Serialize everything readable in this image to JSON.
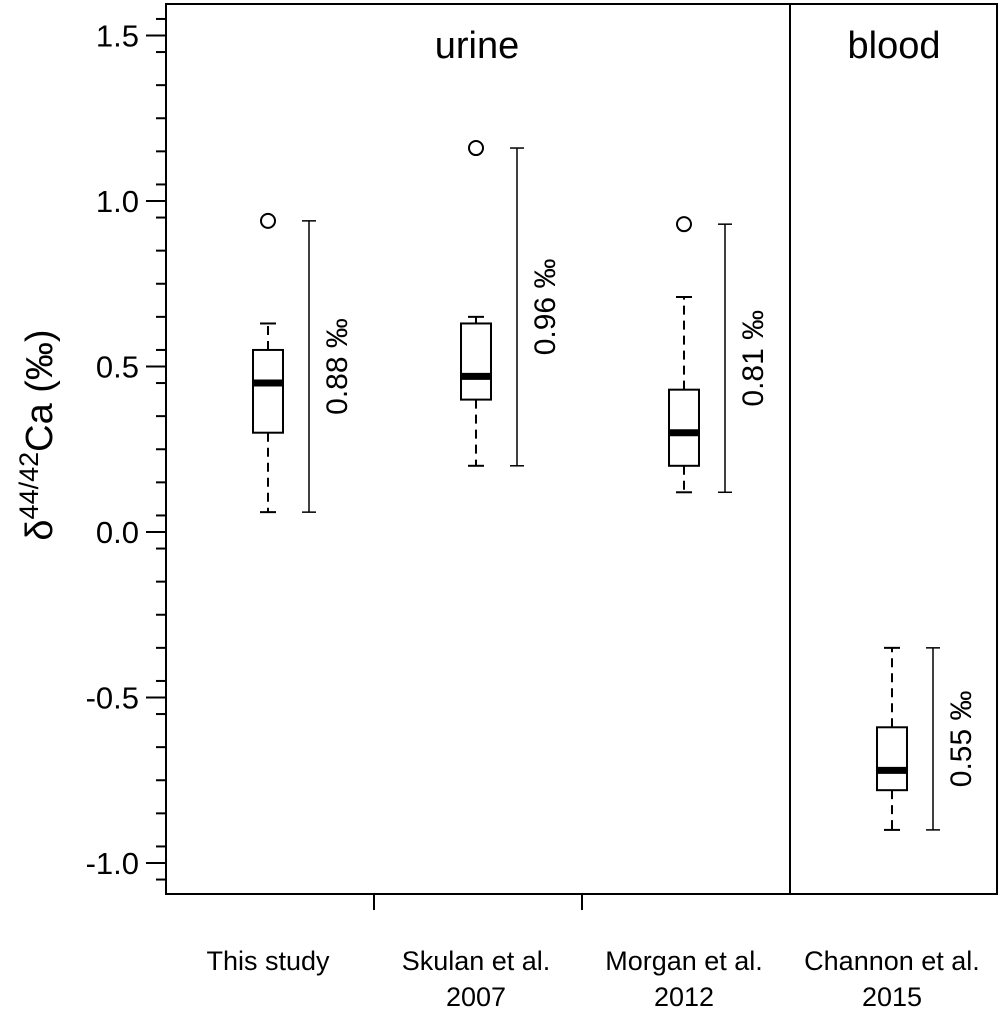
{
  "chart_data": {
    "type": "box",
    "ylabel_symbol": "δ",
    "ylabel_superscript": "44/42",
    "ylabel_main": "Ca (‰)",
    "ylim": [
      -1.1,
      1.6
    ],
    "yticks": [
      1.5,
      1.0,
      0.5,
      0.0,
      -0.5,
      -1.0
    ],
    "ytick_labels": [
      "1.5",
      "1.0",
      "0.5",
      "0.0",
      "-0.5",
      "-1.0"
    ],
    "panel_labels": [
      "urine",
      "blood"
    ],
    "categories": [
      {
        "line1": "This study",
        "line2": ""
      },
      {
        "line1": "Skulan et al.",
        "line2": "2007"
      },
      {
        "line1": "Morgan et al.",
        "line2": "2012"
      },
      {
        "line1": "Channon et al.",
        "line2": "2015"
      }
    ],
    "boxes": [
      {
        "panel": "urine",
        "whisker_low": 0.06,
        "q1": 0.3,
        "median": 0.45,
        "q3": 0.55,
        "whisker_high": 0.63,
        "outliers": [
          0.94
        ],
        "range_low": 0.06,
        "range_high": 0.94,
        "range_label": "0.88 ‰"
      },
      {
        "panel": "urine",
        "whisker_low": 0.2,
        "q1": 0.4,
        "median": 0.47,
        "q3": 0.63,
        "whisker_high": 0.65,
        "outliers": [
          1.16
        ],
        "range_low": 0.2,
        "range_high": 1.16,
        "range_label": "0.96 ‰"
      },
      {
        "panel": "urine",
        "whisker_low": 0.12,
        "q1": 0.2,
        "median": 0.3,
        "q3": 0.43,
        "whisker_high": 0.71,
        "outliers": [
          0.93
        ],
        "range_low": 0.12,
        "range_high": 0.93,
        "range_label": "0.81 ‰"
      },
      {
        "panel": "blood",
        "whisker_low": -0.9,
        "q1": -0.78,
        "median": -0.72,
        "q3": -0.59,
        "whisker_high": -0.35,
        "outliers": [],
        "range_low": -0.9,
        "range_high": -0.35,
        "range_label": "0.55 ‰"
      }
    ]
  }
}
